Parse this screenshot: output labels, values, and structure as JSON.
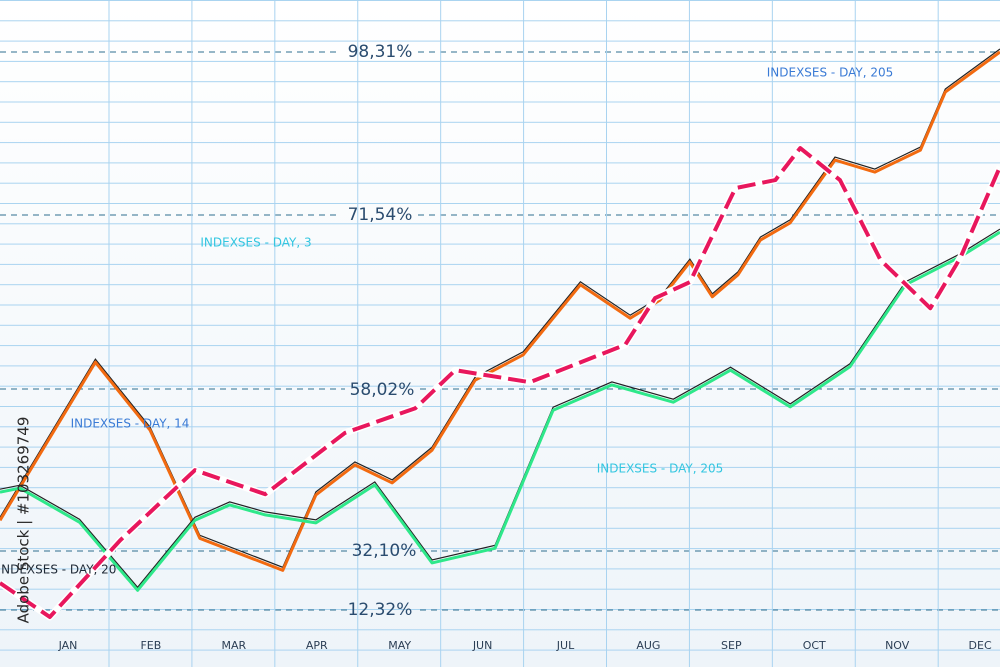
{
  "chart_data": {
    "type": "line",
    "xlim": [
      -0.82,
      11.24
    ],
    "ylim": [
      0,
      100
    ],
    "xticks": [
      {
        "value": 0,
        "label": "JAN"
      },
      {
        "value": 1,
        "label": "FEB"
      },
      {
        "value": 2,
        "label": "MAR"
      },
      {
        "value": 3,
        "label": "APR"
      },
      {
        "value": 4,
        "label": "MAY"
      },
      {
        "value": 5,
        "label": "JUN"
      },
      {
        "value": 6,
        "label": "JUL"
      },
      {
        "value": 7,
        "label": "AUG"
      },
      {
        "value": 8,
        "label": "SEP"
      },
      {
        "value": 9,
        "label": "OCT"
      },
      {
        "value": 10,
        "label": "NOV"
      },
      {
        "value": 11,
        "label": "DEC"
      }
    ],
    "reference_labels": [
      "98,31%",
      "71,54%",
      "58,02%",
      "32,10%",
      "12,32%"
    ],
    "annotations": [
      "INDEXSES - DAY, 205",
      "INDEXSES - DAY, 3",
      "INDEXSES - DAY, 14",
      "INDEXSES - DAY, 205",
      "INDEXSES - DAY, 20"
    ],
    "watermark": "Adobe Stock | #103269749",
    "series": [
      {
        "color": "#f26a10",
        "dashed": false,
        "x": [
          -0.82,
          0.33,
          0.99,
          1.59,
          2.59,
          2.99,
          3.46,
          3.91,
          4.39,
          4.91,
          5.49,
          6.18,
          6.78,
          7.14,
          7.5,
          7.77,
          8.08,
          8.35,
          8.71,
          9.25,
          9.73,
          10.28,
          10.58,
          11.24
        ],
        "values": [
          22.0,
          45.7,
          35.5,
          19.3,
          14.5,
          25.8,
          30.3,
          27.6,
          32.5,
          43.0,
          46.8,
          57.3,
          52.3,
          55.0,
          60.7,
          55.5,
          58.8,
          64.0,
          66.6,
          76.0,
          74.2,
          77.5,
          86.2,
          92.2
        ]
      },
      {
        "color": "#2ee88a",
        "dashed": false,
        "x": [
          -0.82,
          -0.58,
          0.14,
          0.84,
          1.53,
          1.95,
          2.38,
          2.99,
          3.7,
          4.39,
          5.15,
          5.85,
          6.56,
          7.3,
          7.99,
          8.71,
          9.43,
          10.1,
          10.76,
          11.24
        ],
        "values": [
          26.2,
          26.8,
          21.7,
          11.5,
          22.0,
          24.3,
          22.8,
          21.6,
          27.3,
          15.6,
          17.8,
          38.5,
          42.3,
          39.7,
          44.5,
          39.0,
          45.0,
          57.3,
          61.5,
          65.2
        ]
      },
      {
        "color": "#e8175d",
        "dashed": true,
        "x": [
          -0.82,
          -0.22,
          0.63,
          1.53,
          2.38,
          3.34,
          4.19,
          4.67,
          5.57,
          6.72,
          7.08,
          7.5,
          8.05,
          8.53,
          8.83,
          9.31,
          9.8,
          10.4,
          10.76,
          11.24
        ],
        "values": [
          12.6,
          7.5,
          19.0,
          29.5,
          25.9,
          35.1,
          38.8,
          44.5,
          42.7,
          48.3,
          55.3,
          57.7,
          71.8,
          73.0,
          77.8,
          73.0,
          61.0,
          53.8,
          61.3,
          75.0
        ]
      }
    ]
  }
}
